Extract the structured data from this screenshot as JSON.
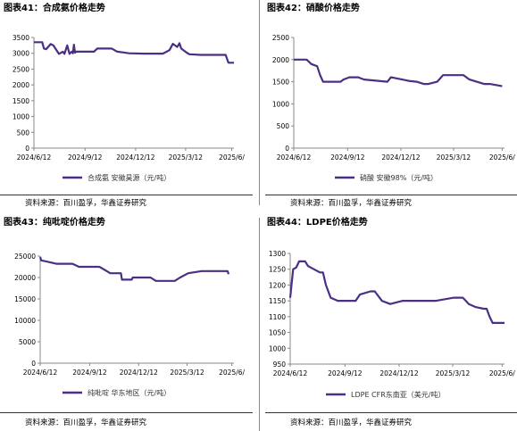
{
  "line_color": "#4b2f84",
  "chart_data": [
    {
      "id": "c41",
      "type": "line",
      "title": "图表41：合成氨价格走势",
      "legend": "合成氨 安徽昊源（元/吨）",
      "ylim": [
        0,
        3500
      ],
      "yticks": [
        0,
        500,
        1000,
        1500,
        2000,
        2500,
        3000,
        3500
      ],
      "xlim": [
        0,
        360
      ],
      "xtick_positions": [
        0,
        92,
        183,
        273,
        356
      ],
      "xtick_labels": [
        "2024/6/12",
        "2024/9/12",
        "2024/12/12",
        "2025/3/12",
        "2025/6/"
      ],
      "source": "资料来源：百川盈孚，华鑫证券研究",
      "series": [
        {
          "x": [
            0,
            15,
            18,
            22,
            30,
            35,
            45,
            52,
            55,
            60,
            64,
            68,
            70,
            72,
            74,
            76,
            108,
            114,
            140,
            150,
            160,
            171,
            198,
            232,
            244,
            250,
            258,
            262,
            265,
            275,
            280,
            300,
            345,
            350,
            360
          ],
          "values": [
            3350,
            3350,
            3150,
            3130,
            3290,
            3250,
            2980,
            3050,
            2980,
            3250,
            2980,
            3050,
            3000,
            3270,
            3020,
            3050,
            3050,
            3150,
            3150,
            3050,
            3030,
            3000,
            2990,
            2990,
            3100,
            3300,
            3200,
            3320,
            3150,
            3020,
            2970,
            2950,
            2950,
            2700,
            2700
          ]
        }
      ]
    },
    {
      "id": "c42",
      "type": "line",
      "title": "图表42：硝酸价格走势",
      "legend": "硝酸 安徽98%（元/吨）",
      "ylim": [
        0,
        2500
      ],
      "yticks": [
        0,
        500,
        1000,
        1500,
        2000,
        2500
      ],
      "xlim": [
        0,
        360
      ],
      "xtick_positions": [
        0,
        92,
        183,
        273,
        356
      ],
      "xtick_labels": [
        "2024/6/12",
        "2024/9/12",
        "2024/12/12",
        "2025/3/12",
        "2025/6/"
      ],
      "source": "资料来源：百川盈孚，华鑫证券研究",
      "series": [
        {
          "x": [
            0,
            22,
            30,
            40,
            45,
            50,
            80,
            85,
            95,
            110,
            120,
            160,
            166,
            185,
            196,
            210,
            222,
            230,
            245,
            255,
            270,
            290,
            300,
            325,
            335,
            356
          ],
          "values": [
            2000,
            2000,
            1900,
            1850,
            1650,
            1500,
            1500,
            1550,
            1600,
            1600,
            1550,
            1500,
            1600,
            1550,
            1520,
            1500,
            1450,
            1450,
            1500,
            1650,
            1650,
            1650,
            1550,
            1450,
            1450,
            1400
          ]
        }
      ]
    },
    {
      "id": "c43",
      "type": "line",
      "title": "图表43：纯吡啶价格走势",
      "legend": "纯吡啶 华东地区（元/吨）",
      "ylim": [
        0,
        25000
      ],
      "yticks": [
        0,
        5000,
        10000,
        15000,
        20000,
        25000
      ],
      "xlim": [
        0,
        360
      ],
      "xtick_positions": [
        0,
        92,
        183,
        273,
        356
      ],
      "xtick_labels": [
        "2024/6/12",
        "2024/9/12",
        "2024/12/12",
        "2025/3/12",
        "2025/6/"
      ],
      "source": "资料来源：百川盈孚，华鑫证券研究",
      "series": [
        {
          "x": [
            0,
            2,
            10,
            30,
            60,
            72,
            110,
            120,
            130,
            150,
            152,
            170,
            172,
            205,
            215,
            250,
            260,
            275,
            300,
            320,
            348,
            350
          ],
          "values": [
            24800,
            24000,
            23800,
            23200,
            23200,
            22500,
            22500,
            21800,
            21000,
            21000,
            19500,
            19500,
            20000,
            20000,
            19200,
            19200,
            20000,
            21000,
            21500,
            21500,
            21500,
            20800
          ]
        }
      ]
    },
    {
      "id": "c44",
      "type": "line",
      "title": "图表44：LDPE价格走势",
      "legend": "LDPE CFR东南亚（美元/吨）",
      "ylim": [
        950,
        1300
      ],
      "yticks": [
        950,
        1000,
        1050,
        1100,
        1150,
        1200,
        1250,
        1300
      ],
      "xlim": [
        0,
        360
      ],
      "xtick_positions": [
        0,
        92,
        183,
        273,
        356
      ],
      "xtick_labels": [
        "2024/6/12",
        "2024/9/12",
        "2024/12/12",
        "2025/3/12",
        "2025/6/"
      ],
      "source": "资料来源：百川盈孚，华鑫证券研究",
      "series": [
        {
          "x": [
            0,
            5,
            10,
            15,
            25,
            30,
            50,
            55,
            60,
            68,
            80,
            110,
            117,
            135,
            142,
            154,
            168,
            189,
            210,
            222,
            245,
            275,
            290,
            295,
            300,
            312,
            325,
            330,
            335,
            340,
            350,
            360
          ],
          "values": [
            1160,
            1250,
            1255,
            1275,
            1275,
            1260,
            1240,
            1240,
            1200,
            1160,
            1150,
            1150,
            1170,
            1180,
            1180,
            1150,
            1140,
            1150,
            1150,
            1150,
            1150,
            1160,
            1160,
            1150,
            1140,
            1130,
            1125,
            1125,
            1100,
            1080,
            1080,
            1080
          ]
        }
      ]
    }
  ]
}
